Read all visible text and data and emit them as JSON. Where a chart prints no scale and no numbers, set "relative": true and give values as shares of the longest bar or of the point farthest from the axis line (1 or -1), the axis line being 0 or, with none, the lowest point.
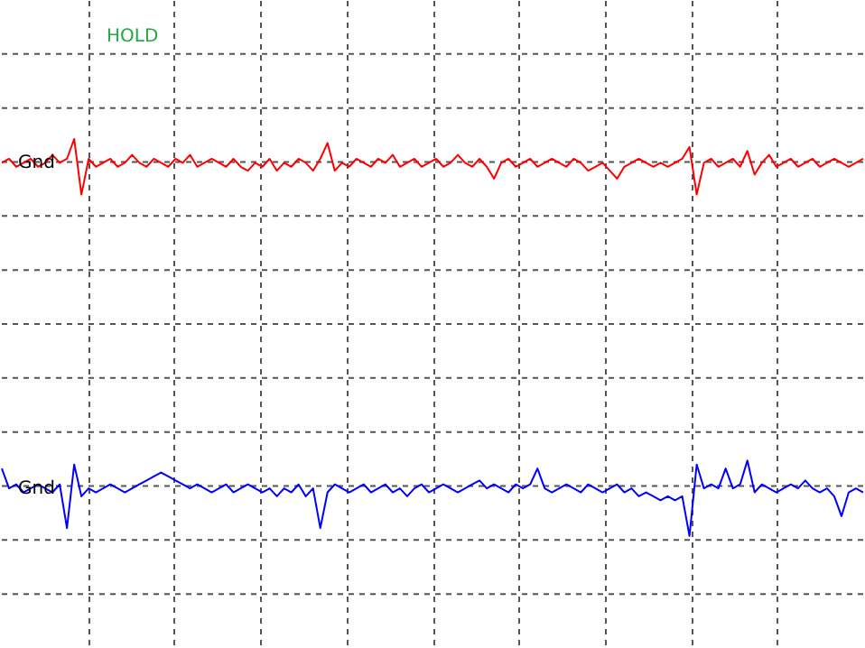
{
  "chart_data": {
    "type": "line",
    "relative": true,
    "grid": true,
    "annotations": [
      "HOLD",
      {
        "text": "Gnd",
        "y": 0.94
      },
      {
        "text": "Gnd",
        "y": 0.12
      }
    ],
    "categories": [
      null,
      null,
      null,
      null,
      null,
      null,
      null,
      null,
      null,
      null,
      null,
      null,
      null,
      null,
      null,
      null,
      null,
      null,
      null,
      null,
      null,
      null,
      null,
      null,
      null,
      null,
      null,
      null,
      null,
      null,
      null,
      null,
      null,
      null,
      null,
      null,
      null,
      null,
      null,
      null,
      null,
      null,
      null,
      null,
      null,
      null,
      null,
      null,
      null,
      null,
      null,
      null,
      null,
      null,
      null,
      null,
      null,
      null,
      null,
      null,
      null,
      null,
      null,
      null,
      null,
      null,
      null,
      null,
      null,
      null,
      null,
      null,
      null,
      null,
      null,
      null,
      null,
      null,
      null,
      null,
      null,
      null,
      null,
      null,
      null,
      null,
      null,
      null,
      null,
      null,
      null,
      null,
      null,
      null,
      null,
      null,
      null,
      null,
      null,
      null,
      null,
      null,
      null,
      null,
      null,
      null,
      null,
      null,
      null,
      null,
      null,
      null,
      null,
      null,
      null,
      null,
      null,
      null,
      null,
      null
    ],
    "series": [
      {
        "color": "#ff0000",
        "values": [
          0.94,
          0.95,
          0.93,
          0.94,
          0.95,
          0.93,
          0.94,
          0.96,
          0.94,
          0.95,
          1.0,
          0.86,
          0.95,
          0.93,
          0.94,
          0.95,
          0.93,
          0.94,
          0.96,
          0.94,
          0.93,
          0.95,
          0.94,
          0.93,
          0.95,
          0.94,
          0.96,
          0.93,
          0.94,
          0.95,
          0.94,
          0.93,
          0.95,
          0.93,
          0.92,
          0.94,
          0.93,
          0.95,
          0.92,
          0.94,
          0.93,
          0.95,
          0.94,
          0.92,
          0.95,
          0.99,
          0.92,
          0.94,
          0.93,
          0.95,
          0.94,
          0.93,
          0.95,
          0.94,
          0.96,
          0.93,
          0.94,
          0.95,
          0.93,
          0.94,
          0.95,
          0.93,
          0.94,
          0.96,
          0.94,
          0.93,
          0.95,
          0.93,
          0.9,
          0.94,
          0.95,
          0.93,
          0.94,
          0.95,
          0.93,
          0.94,
          0.95,
          0.94,
          0.93,
          0.95,
          0.94,
          0.92,
          0.93,
          0.94,
          0.92,
          0.9,
          0.93,
          0.94,
          0.95,
          0.94,
          0.93,
          0.94,
          0.93,
          0.94,
          0.95,
          0.98,
          0.86,
          0.94,
          0.95,
          0.93,
          0.94,
          0.95,
          0.93,
          0.97,
          0.91,
          0.94,
          0.96,
          0.93,
          0.94,
          0.95,
          0.93,
          0.94,
          0.95,
          0.93,
          0.94,
          0.95,
          0.94,
          0.93,
          0.94,
          0.95
        ]
      },
      {
        "color": "#0000ff",
        "values": [
          0.17,
          0.12,
          0.13,
          0.11,
          0.12,
          0.13,
          0.12,
          0.11,
          0.13,
          0.02,
          0.18,
          0.1,
          0.12,
          0.11,
          0.12,
          0.13,
          0.12,
          0.11,
          0.12,
          0.13,
          0.14,
          0.15,
          0.16,
          0.15,
          0.14,
          0.13,
          0.12,
          0.13,
          0.12,
          0.11,
          0.12,
          0.13,
          0.11,
          0.12,
          0.13,
          0.12,
          0.11,
          0.12,
          0.1,
          0.12,
          0.11,
          0.13,
          0.1,
          0.12,
          0.02,
          0.11,
          0.13,
          0.12,
          0.11,
          0.12,
          0.13,
          0.11,
          0.12,
          0.13,
          0.11,
          0.12,
          0.1,
          0.12,
          0.13,
          0.11,
          0.12,
          0.13,
          0.12,
          0.11,
          0.12,
          0.13,
          0.14,
          0.12,
          0.13,
          0.12,
          0.11,
          0.13,
          0.12,
          0.13,
          0.17,
          0.12,
          0.11,
          0.12,
          0.13,
          0.12,
          0.11,
          0.13,
          0.12,
          0.11,
          0.12,
          0.13,
          0.11,
          0.12,
          0.1,
          0.11,
          0.1,
          0.09,
          0.1,
          0.09,
          0.1,
          0.0,
          0.18,
          0.12,
          0.13,
          0.12,
          0.17,
          0.12,
          0.13,
          0.19,
          0.11,
          0.13,
          0.12,
          0.11,
          0.12,
          0.13,
          0.12,
          0.14,
          0.12,
          0.11,
          0.12,
          0.1,
          0.05,
          0.11,
          0.12,
          0.11
        ]
      }
    ]
  }
}
